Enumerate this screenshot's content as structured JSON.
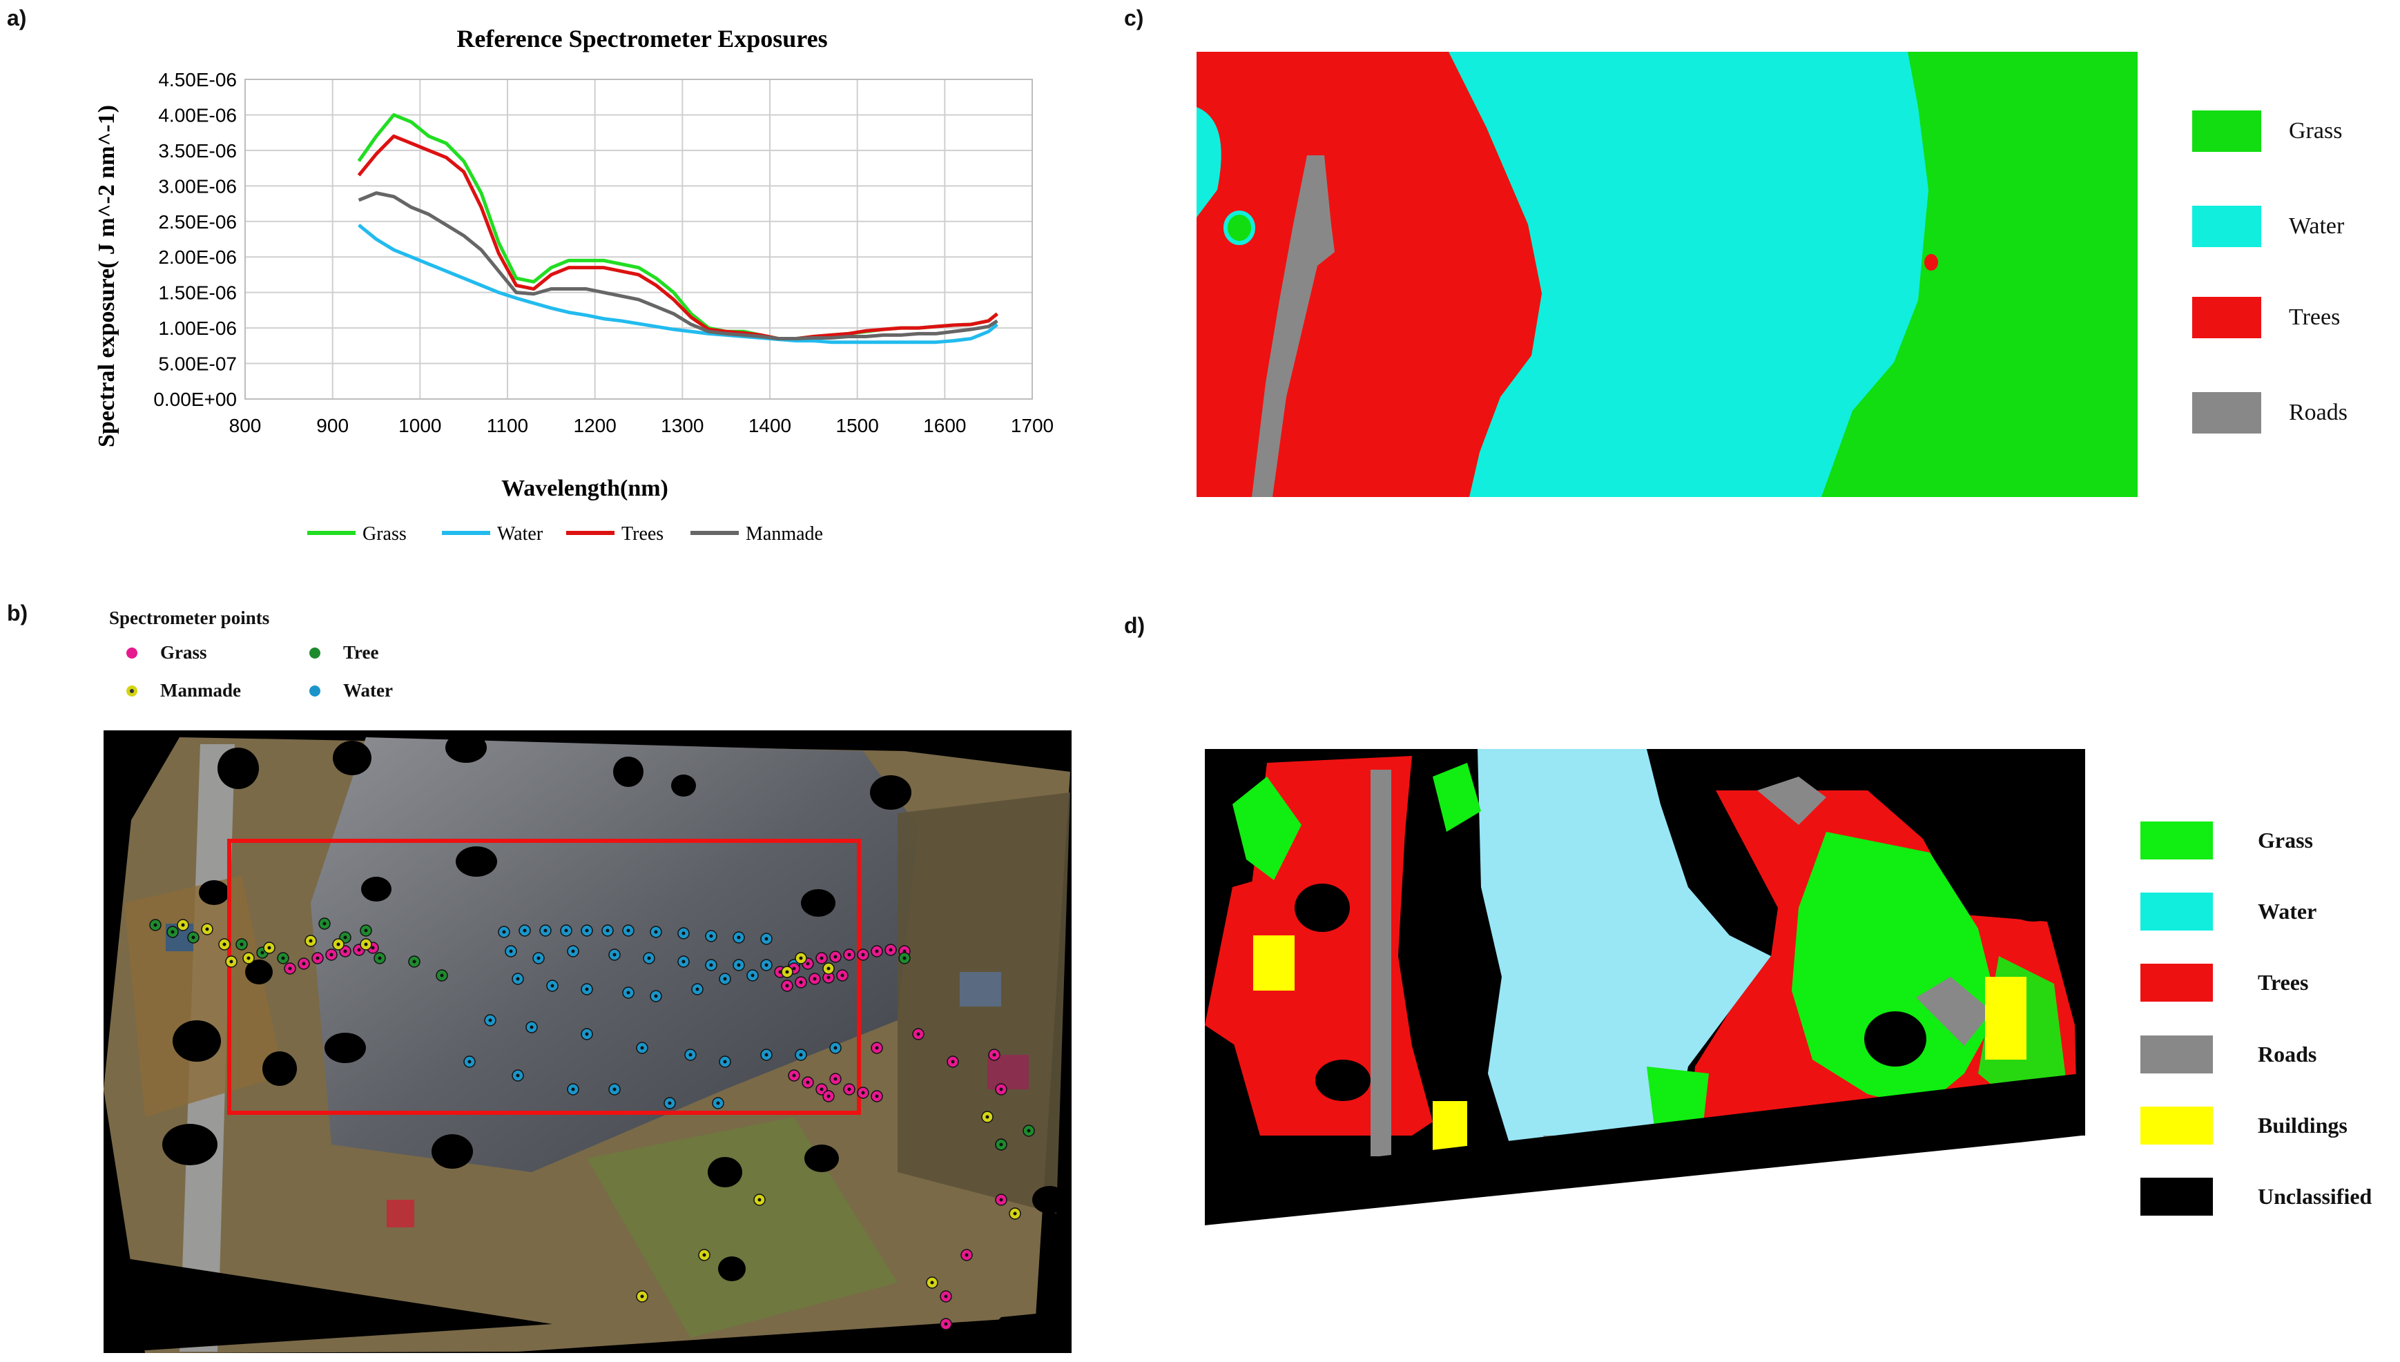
{
  "panel_labels": {
    "a": "a)",
    "b": "b)",
    "c": "c)",
    "d": "d)"
  },
  "panel_a": {
    "chart_data": {
      "type": "line",
      "title": "Reference Spectrometer Exposures",
      "xlabel": "Wavelength(nm)",
      "ylabel": "Spectral exposure( J m^-2 nm^-1)",
      "xlim": [
        800,
        1700
      ],
      "ylim": [
        0,
        4.5e-06
      ],
      "x_ticks": [
        "800",
        "900",
        "1000",
        "1100",
        "1200",
        "1300",
        "1400",
        "1500",
        "1600",
        "1700"
      ],
      "y_ticks": [
        "0.00E+00",
        "5.00E-07",
        "1.00E-06",
        "1.50E-06",
        "2.00E-06",
        "2.50E-06",
        "3.00E-06",
        "3.50E-06",
        "4.00E-06",
        "4.50E-06"
      ],
      "grid": true,
      "legend_position": "bottom",
      "x": [
        930,
        950,
        970,
        990,
        1010,
        1030,
        1050,
        1070,
        1090,
        1110,
        1130,
        1150,
        1170,
        1190,
        1210,
        1230,
        1250,
        1270,
        1290,
        1310,
        1330,
        1350,
        1370,
        1390,
        1410,
        1430,
        1450,
        1470,
        1490,
        1510,
        1530,
        1550,
        1570,
        1590,
        1610,
        1630,
        1650,
        1660
      ],
      "series": [
        {
          "name": "Grass",
          "color": "#22dd22",
          "values": [
            3.35e-06,
            3.7e-06,
            4e-06,
            3.9e-06,
            3.7e-06,
            3.6e-06,
            3.35e-06,
            2.9e-06,
            2.2e-06,
            1.7e-06,
            1.65e-06,
            1.85e-06,
            1.95e-06,
            1.95e-06,
            1.95e-06,
            1.9e-06,
            1.85e-06,
            1.7e-06,
            1.5e-06,
            1.2e-06,
            1e-06,
            9.5e-07,
            9.5e-07,
            9e-07,
            8.5e-07,
            8.5e-07,
            8.8e-07,
            9e-07,
            9.2e-07,
            9.5e-07,
            9.8e-07,
            1e-06,
            1e-06,
            1.02e-06,
            1.04e-06,
            1.05e-06,
            1.1e-06,
            1.2e-06
          ]
        },
        {
          "name": "Water",
          "color": "#22bbee",
          "values": [
            2.45e-06,
            2.25e-06,
            2.1e-06,
            2e-06,
            1.9e-06,
            1.8e-06,
            1.7e-06,
            1.6e-06,
            1.5e-06,
            1.42e-06,
            1.35e-06,
            1.28e-06,
            1.22e-06,
            1.18e-06,
            1.13e-06,
            1.1e-06,
            1.06e-06,
            1.02e-06,
            9.8e-07,
            9.5e-07,
            9.2e-07,
            9e-07,
            8.8e-07,
            8.6e-07,
            8.4e-07,
            8.2e-07,
            8.2e-07,
            8e-07,
            8e-07,
            8e-07,
            8e-07,
            8e-07,
            8e-07,
            8e-07,
            8.2e-07,
            8.5e-07,
            9.5e-07,
            1.05e-06
          ]
        },
        {
          "name": "Trees",
          "color": "#dd1111",
          "values": [
            3.15e-06,
            3.45e-06,
            3.7e-06,
            3.6e-06,
            3.5e-06,
            3.4e-06,
            3.2e-06,
            2.7e-06,
            2.05e-06,
            1.6e-06,
            1.55e-06,
            1.75e-06,
            1.85e-06,
            1.85e-06,
            1.85e-06,
            1.8e-06,
            1.75e-06,
            1.6e-06,
            1.4e-06,
            1.15e-06,
            9.8e-07,
            9.5e-07,
            9.3e-07,
            9e-07,
            8.5e-07,
            8.5e-07,
            8.8e-07,
            9e-07,
            9.2e-07,
            9.6e-07,
            9.8e-07,
            1e-06,
            1e-06,
            1.02e-06,
            1.04e-06,
            1.05e-06,
            1.1e-06,
            1.2e-06
          ]
        },
        {
          "name": "Manmade",
          "color": "#666666",
          "values": [
            2.8e-06,
            2.9e-06,
            2.85e-06,
            2.7e-06,
            2.6e-06,
            2.45e-06,
            2.3e-06,
            2.1e-06,
            1.8e-06,
            1.5e-06,
            1.48e-06,
            1.55e-06,
            1.55e-06,
            1.55e-06,
            1.5e-06,
            1.45e-06,
            1.4e-06,
            1.3e-06,
            1.2e-06,
            1.05e-06,
            9.5e-07,
            9.2e-07,
            9e-07,
            8.8e-07,
            8.5e-07,
            8.5e-07,
            8.6e-07,
            8.6e-07,
            8.8e-07,
            8.8e-07,
            9e-07,
            9e-07,
            9.2e-07,
            9.2e-07,
            9.5e-07,
            9.8e-07,
            1.02e-06,
            1.1e-06
          ]
        }
      ]
    }
  },
  "panel_b": {
    "legend_title": "Spectrometer points",
    "legend": [
      {
        "label": "Grass",
        "color": "#e8188f"
      },
      {
        "label": "Tree",
        "color": "#1e8a2e"
      },
      {
        "label": "Manmade",
        "color": "#d4d414"
      },
      {
        "label": "Water",
        "color": "#1b95c9"
      }
    ],
    "box_color": "#ee1111"
  },
  "panel_c": {
    "legend": [
      {
        "label": "Grass",
        "color": "#11dd11"
      },
      {
        "label": "Water",
        "color": "#11eedd"
      },
      {
        "label": "Trees",
        "color": "#ee1111"
      },
      {
        "label": "Roads",
        "color": "#888888"
      }
    ]
  },
  "panel_d": {
    "legend": [
      {
        "label": "Grass",
        "color": "#11ee11"
      },
      {
        "label": "Water",
        "color": "#11eedd"
      },
      {
        "label": "Trees",
        "color": "#ee1111"
      },
      {
        "label": "Roads",
        "color": "#888888"
      },
      {
        "label": "Buildings",
        "color": "#ffff00"
      },
      {
        "label": "Unclassified",
        "color": "#000000"
      }
    ],
    "water_color": "#99e6f5"
  }
}
